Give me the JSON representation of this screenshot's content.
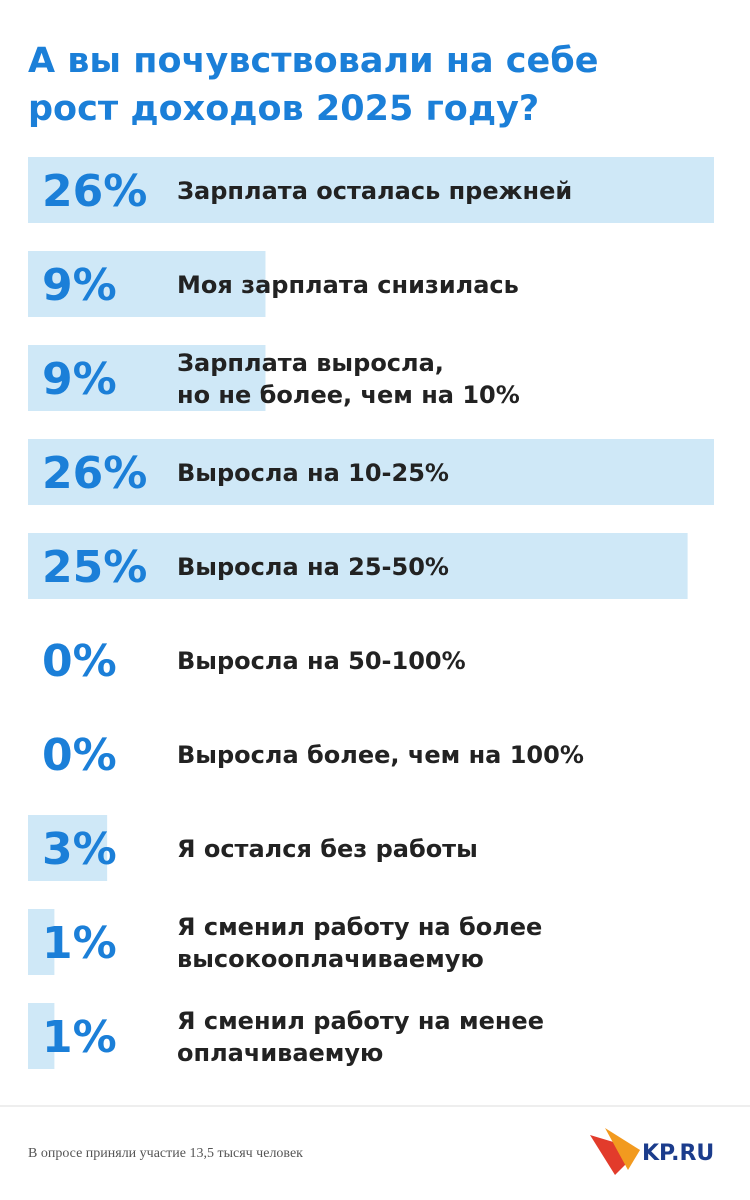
{
  "chart_data": {
    "type": "bar",
    "orientation": "horizontal",
    "title": "А вы почувствовали на себе\nрост доходов 2025 году?",
    "categories": [
      "Зарплата осталась прежней",
      "Моя зарплата снизилась",
      "Зарплата выросла,\nно не более, чем на 10%",
      "Выросла на 10-25%",
      "Выросла на 25-50%",
      "Выросла на 50-100%",
      "Выросла более, чем на 100%",
      "Я остался без работы",
      "Я сменил работу на более\nвысокооплачиваемую",
      "Я сменил работу на менее\nоплачиваемую"
    ],
    "values": [
      26,
      9,
      9,
      26,
      25,
      0,
      0,
      3,
      1,
      1
    ],
    "value_labels": [
      "26%",
      "9%",
      "9%",
      "26%",
      "25%",
      "0%",
      "0%",
      "3%",
      "1%",
      "1%"
    ],
    "color": "#cfe8f7",
    "label_color": "#1b7fd8",
    "note": "В опросе приняли участие 13,5 тысяч человек",
    "logo": "KP.RU"
  }
}
